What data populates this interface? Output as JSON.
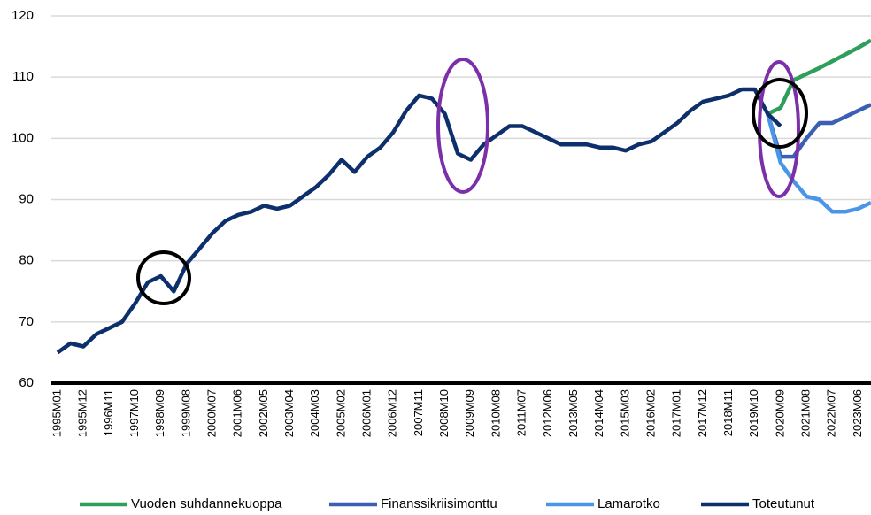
{
  "chart_data": {
    "type": "line",
    "categories": [
      "1995M01",
      null,
      "1995M12",
      null,
      "1996M11",
      null,
      "1997M10",
      null,
      "1998M09",
      null,
      "1999M08",
      null,
      "2000M07",
      null,
      "2001M06",
      null,
      "2002M05",
      null,
      "2003M04",
      null,
      "2004M03",
      null,
      "2005M02",
      null,
      "2006M01",
      null,
      "2006M12",
      null,
      "2007M11",
      null,
      "2008M10",
      null,
      "2009M09",
      null,
      "2010M08",
      null,
      "2011M07",
      null,
      "2012M06",
      null,
      "2013M05",
      null,
      "2014M04",
      null,
      "2015M03",
      null,
      "2016M02",
      null,
      "2017M01",
      null,
      "2017M12",
      null,
      "2018M11",
      null,
      "2019M10",
      null,
      "2020M09",
      null,
      "2021M08",
      null,
      "2022M07",
      null,
      "2023M06",
      null
    ],
    "series": [
      {
        "name": "Vuoden suhdannekuoppa",
        "color": "#2e9e5b",
        "values": [
          null,
          null,
          null,
          null,
          null,
          null,
          null,
          null,
          null,
          null,
          null,
          null,
          null,
          null,
          null,
          null,
          null,
          null,
          null,
          null,
          null,
          null,
          null,
          null,
          null,
          null,
          null,
          null,
          null,
          null,
          null,
          null,
          null,
          null,
          null,
          null,
          null,
          null,
          null,
          null,
          null,
          null,
          null,
          null,
          null,
          null,
          null,
          null,
          null,
          null,
          null,
          null,
          null,
          null,
          null,
          104,
          105,
          109.5,
          110.5,
          111.5,
          112.6,
          113.7,
          114.8,
          116
        ]
      },
      {
        "name": "Finanssikriisimonttu",
        "color": "#3b5fb5",
        "values": [
          null,
          null,
          null,
          null,
          null,
          null,
          null,
          null,
          null,
          null,
          null,
          null,
          null,
          null,
          null,
          null,
          null,
          null,
          null,
          null,
          null,
          null,
          null,
          null,
          null,
          null,
          null,
          null,
          null,
          null,
          null,
          null,
          null,
          null,
          null,
          null,
          null,
          null,
          null,
          null,
          null,
          null,
          null,
          null,
          null,
          null,
          null,
          null,
          null,
          null,
          null,
          null,
          null,
          null,
          null,
          104,
          97,
          97,
          100,
          102.5,
          102.5,
          103.5,
          104.5,
          105.5
        ]
      },
      {
        "name": "Lamarotko",
        "color": "#4a95e8",
        "values": [
          null,
          null,
          null,
          null,
          null,
          null,
          null,
          null,
          null,
          null,
          null,
          null,
          null,
          null,
          null,
          null,
          null,
          null,
          null,
          null,
          null,
          null,
          null,
          null,
          null,
          null,
          null,
          null,
          null,
          null,
          null,
          null,
          null,
          null,
          null,
          null,
          null,
          null,
          null,
          null,
          null,
          null,
          null,
          null,
          null,
          null,
          null,
          null,
          null,
          null,
          null,
          null,
          null,
          null,
          null,
          104,
          96,
          93,
          90.5,
          90,
          88,
          88,
          88.5,
          89.5
        ]
      },
      {
        "name": "Toteutunut",
        "color": "#0d2f6b",
        "values": [
          65,
          66.5,
          66,
          68,
          69,
          70,
          73,
          76.5,
          77.5,
          75,
          79.5,
          82,
          84.5,
          86.5,
          87.5,
          88,
          89,
          88.5,
          89,
          90.5,
          92,
          94,
          96.5,
          94.5,
          97,
          98.5,
          101,
          104.5,
          107,
          106.5,
          104,
          97.5,
          96.5,
          99,
          100.5,
          102,
          102,
          101,
          100,
          99,
          99,
          99,
          98.5,
          98.5,
          98,
          99,
          99.5,
          101,
          102.5,
          104.5,
          106,
          106.5,
          107,
          108,
          108,
          104,
          102,
          null,
          null,
          null,
          null,
          null,
          null,
          null
        ]
      }
    ],
    "ylim": [
      60,
      120
    ],
    "yticks": [
      60,
      70,
      80,
      90,
      100,
      110,
      120
    ],
    "grid": true
  }
}
